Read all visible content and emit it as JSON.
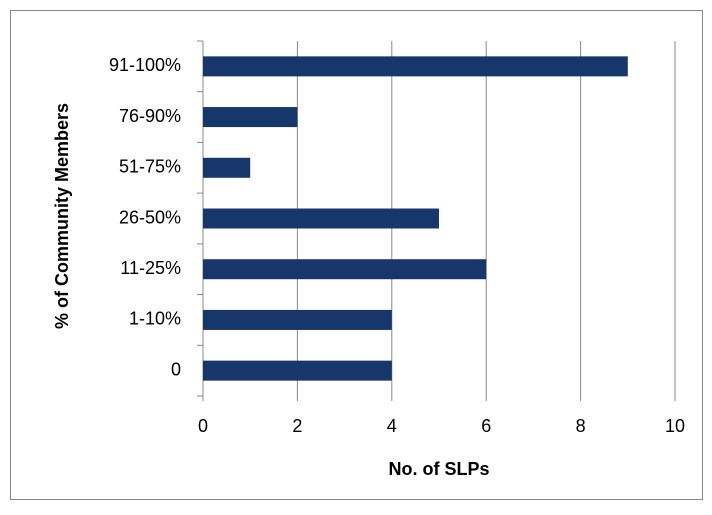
{
  "chart_data": {
    "type": "barh",
    "categories": [
      "0",
      "1-10%",
      "11-25%",
      "26-50%",
      "51-75%",
      "76-90%",
      "91-100%"
    ],
    "values": [
      4,
      4,
      6,
      5,
      1,
      2,
      9
    ],
    "color": "#17366b",
    "xlim": [
      0,
      10
    ],
    "xticks": [
      0,
      2,
      4,
      6,
      8,
      10
    ],
    "grid": true,
    "xlabel": "No. of SLPs",
    "ylabel": "% of Community Members"
  }
}
